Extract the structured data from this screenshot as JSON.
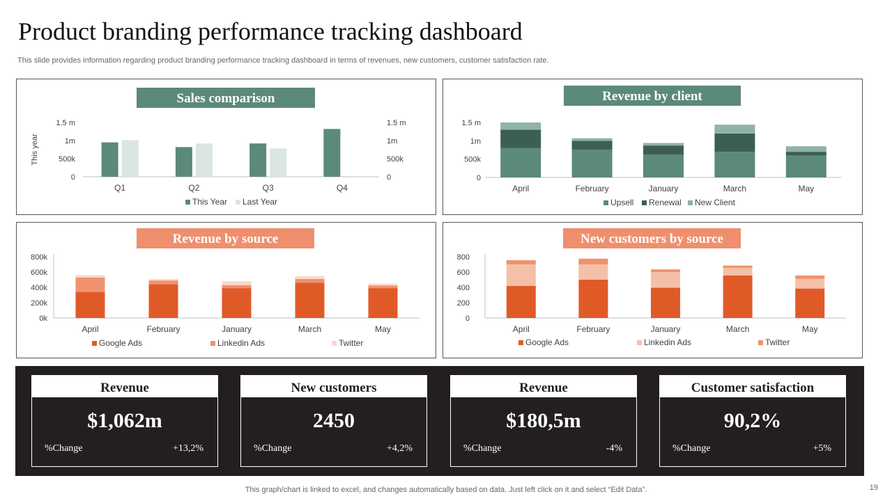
{
  "header": {
    "title": "Product branding performance tracking dashboard",
    "subtitle": "This slide provides information regarding product branding performance tracking dashboard in terms of revenues, new customers, customer satisfaction rate."
  },
  "colors": {
    "green_dark": "#5b8a78",
    "green_darker": "#3d5f52",
    "green_light": "#dbe6e1",
    "green_mid": "#8fb3a5",
    "orange_dark": "#e05a28",
    "orange_light": "#f5c0a8",
    "orange_mid": "#f0926d",
    "orange_pale": "#f9d9cc",
    "kpi_bg": "#231f20"
  },
  "panels": {
    "sales": {
      "banner": "Sales comparison"
    },
    "client": {
      "banner": "Revenue by client"
    },
    "source": {
      "banner": "Revenue by source"
    },
    "newcust": {
      "banner": "New customers by source"
    }
  },
  "chart_data": [
    {
      "id": "sales",
      "type": "bar",
      "title": "Sales comparison",
      "ylabel": "This year",
      "categories": [
        "Q1",
        "Q2",
        "Q3",
        "Q4"
      ],
      "series": [
        {
          "name": "This Year",
          "values": [
            0.95,
            0.82,
            0.92,
            1.32
          ]
        },
        {
          "name": "Last Year",
          "values": [
            1.01,
            0.92,
            0.78,
            null
          ]
        }
      ],
      "ylim": [
        0,
        1.5
      ],
      "yticks": [
        "0",
        "500k",
        "1m",
        "1.5 m"
      ],
      "legend": "bottom"
    },
    {
      "id": "client",
      "type": "bar",
      "stacked": true,
      "title": "Revenue by client",
      "categories": [
        "April",
        "February",
        "January",
        "March",
        "May"
      ],
      "series": [
        {
          "name": "Upsell",
          "values": [
            0.8,
            0.76,
            0.62,
            0.7,
            0.6
          ]
        },
        {
          "name": "Renewal",
          "values": [
            0.5,
            0.24,
            0.25,
            0.5,
            0.1
          ]
        },
        {
          "name": "New Client",
          "values": [
            0.2,
            0.07,
            0.07,
            0.24,
            0.15
          ]
        }
      ],
      "ylim": [
        0,
        1.5
      ],
      "yticks": [
        "0",
        "500k",
        "1m",
        "1.5 m"
      ],
      "legend": "bottom"
    },
    {
      "id": "source",
      "type": "bar",
      "stacked": true,
      "title": "Revenue by source",
      "categories": [
        "April",
        "February",
        "January",
        "March",
        "May"
      ],
      "series": [
        {
          "name": "Google Ads",
          "values": [
            340000,
            440000,
            390000,
            460000,
            390000
          ]
        },
        {
          "name": "Linkedin Ads",
          "values": [
            190000,
            50000,
            40000,
            50000,
            35000
          ]
        },
        {
          "name": "Twitter",
          "values": [
            30000,
            20000,
            50000,
            40000,
            25000
          ]
        }
      ],
      "ylim": [
        0,
        800000
      ],
      "yticks": [
        "0k",
        "200k",
        "400k",
        "600k",
        "800k"
      ],
      "legend": "bottom"
    },
    {
      "id": "newcust",
      "type": "bar",
      "stacked": true,
      "title": "New customers by source",
      "categories": [
        "April",
        "February",
        "January",
        "March",
        "May"
      ],
      "series": [
        {
          "name": "Google Ads",
          "values": [
            420,
            500,
            395,
            555,
            385
          ]
        },
        {
          "name": "Linkedin Ads",
          "values": [
            280,
            200,
            205,
            100,
            125
          ]
        },
        {
          "name": "Twitter",
          "values": [
            55,
            75,
            35,
            30,
            45
          ]
        }
      ],
      "ylim": [
        0,
        800
      ],
      "yticks": [
        "0",
        "200",
        "400",
        "600",
        "800"
      ],
      "legend": "bottom"
    }
  ],
  "kpis": [
    {
      "title": "Revenue",
      "value": "$1,062m",
      "change_label": "%Change",
      "change": "+13,2%"
    },
    {
      "title": "New customers",
      "value": "2450",
      "change_label": "%Change",
      "change": "+4,2%"
    },
    {
      "title": "Revenue",
      "value": "$180,5m",
      "change_label": "%Change",
      "change": "-4%"
    },
    {
      "title": "Customer satisfaction",
      "value": "90,2%",
      "change_label": "%Change",
      "change": "+5%"
    }
  ],
  "footer": {
    "note": "This graph/chart is linked to excel,  and changes automatically based on data. Just left click on it and select “Edit Data”.",
    "page_number": "19"
  }
}
